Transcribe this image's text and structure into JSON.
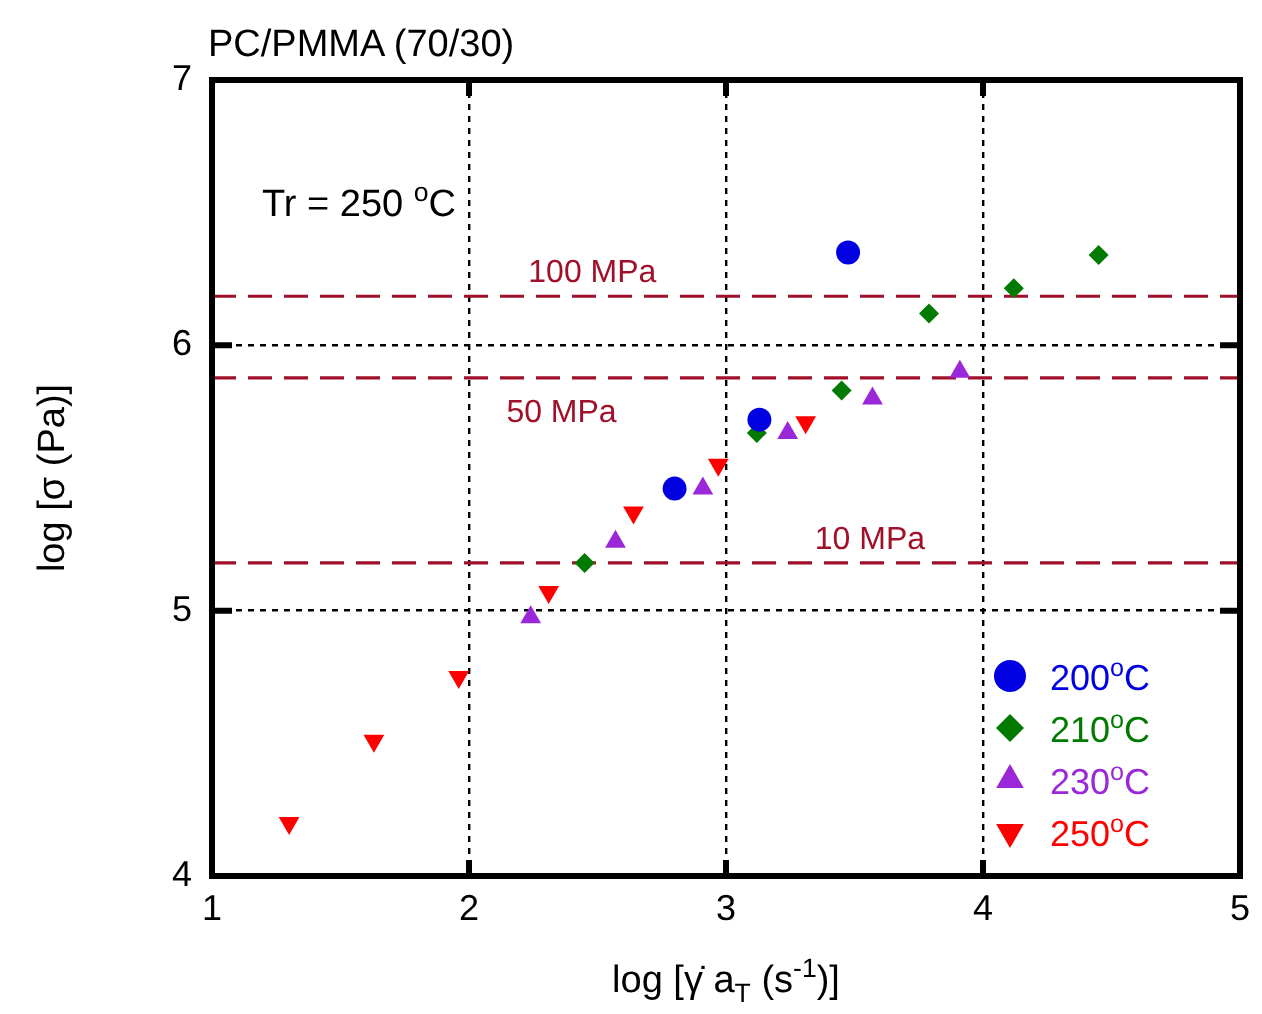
{
  "chart_data": {
    "type": "scatter",
    "title": "PC/PMMA (70/30)",
    "xlabel": "log [γ̇ a$_{T}$ (s$^{-1}$)]",
    "ylabel": "log [σ (Pa)]",
    "xlim": [
      1,
      5
    ],
    "xticks": [
      1,
      2,
      3,
      4,
      5
    ],
    "ylim": [
      4,
      7
    ],
    "yticks": [
      4,
      5,
      6,
      7
    ],
    "grid": true,
    "legend": "bottom right",
    "series": [
      {
        "name": "200$^{o}$C",
        "color": "#0000e0",
        "marker": "circle",
        "x": [
          2.8,
          3.13,
          3.475
        ],
        "values": [
          5.46,
          5.72,
          6.35
        ]
      },
      {
        "name": "210$^{o}$C",
        "color": "#007a00",
        "marker": "diamond",
        "x": [
          2.45,
          2.79,
          3.12,
          3.45,
          3.79,
          4.12,
          4.45
        ],
        "values": [
          5.18,
          null,
          5.67,
          5.83,
          6.12,
          6.215,
          6.34
        ]
      },
      {
        "name": "230$^{o}$C",
        "color": "#9a28d8",
        "marker": "triangle",
        "x": [
          2.24,
          2.57,
          2.91,
          3.24,
          3.57,
          3.91
        ],
        "values": [
          4.975,
          5.26,
          5.46,
          5.67,
          5.8,
          5.9
        ]
      },
      {
        "name": "250$^{o}$C",
        "color": "#ff0000",
        "marker": "triangle_down",
        "x": [
          1.3,
          1.63,
          1.96,
          2.31,
          2.64,
          2.97,
          3.31
        ],
        "values": [
          4.2,
          4.51,
          4.75,
          5.07,
          5.37,
          5.55,
          5.71
        ]
      }
    ],
    "ref_lines": [
      {
        "axis": "y",
        "value": 6.185,
        "label": "100 MPa",
        "color": "#a0102a",
        "line_style": "dashed"
      },
      {
        "axis": "y",
        "value": 5.877,
        "label": "50 MPa",
        "color": "#a0102a",
        "line_style": "dashed"
      },
      {
        "axis": "y",
        "value": 5.18,
        "label": "10 MPa",
        "color": "#a0102a",
        "line_style": "dashed"
      }
    ],
    "annotations": [
      "Tr = 250 $^{o}$C"
    ]
  }
}
